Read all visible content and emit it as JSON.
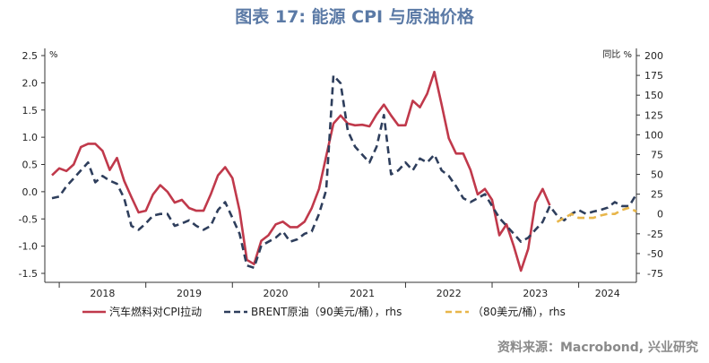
{
  "title": "图表 17: 能源 CPI 与原油价格",
  "source": "资料来源：Macrobond, 兴业研究",
  "chart_data": {
    "type": "line",
    "left_unit": "%",
    "right_unit": "同比 %",
    "ylim_left": [
      -1.5,
      2.5
    ],
    "ylim_right": [
      -75,
      200
    ],
    "left_ticks": [
      "2.5",
      "2.0",
      "1.5",
      "1.0",
      "0.5",
      "0.0",
      "-0.5",
      "-1.0",
      "-1.5"
    ],
    "left_tick_values": [
      2.5,
      2.0,
      1.5,
      1.0,
      0.5,
      0.0,
      -0.5,
      -1.0,
      -1.5
    ],
    "right_ticks": [
      "200",
      "175",
      "150",
      "125",
      "100",
      "75",
      "50",
      "25",
      "0",
      "-25",
      "-50",
      "-75"
    ],
    "right_tick_values": [
      200,
      175,
      150,
      125,
      100,
      75,
      50,
      25,
      0,
      -25,
      -50,
      -75
    ],
    "x_range": [
      "2017-11",
      "2024-09"
    ],
    "year_labels": [
      "2018",
      "2019",
      "2020",
      "2021",
      "2022",
      "2023",
      "2024"
    ],
    "legend_position": "bottom",
    "series": [
      {
        "name": "汽车燃料对CPI拉动",
        "axis": "left",
        "color": "#c0394b",
        "style": "solid",
        "x": [
          "2017-12",
          "2018-01",
          "2018-02",
          "2018-03",
          "2018-04",
          "2018-05",
          "2018-06",
          "2018-07",
          "2018-08",
          "2018-09",
          "2018-10",
          "2018-11",
          "2018-12",
          "2019-01",
          "2019-02",
          "2019-03",
          "2019-04",
          "2019-05",
          "2019-06",
          "2019-07",
          "2019-08",
          "2019-09",
          "2019-10",
          "2019-11",
          "2019-12",
          "2020-01",
          "2020-02",
          "2020-03",
          "2020-04",
          "2020-05",
          "2020-06",
          "2020-07",
          "2020-08",
          "2020-09",
          "2020-10",
          "2020-11",
          "2020-12",
          "2021-01",
          "2021-02",
          "2021-03",
          "2021-04",
          "2021-05",
          "2021-06",
          "2021-07",
          "2021-08",
          "2021-09",
          "2021-10",
          "2021-11",
          "2021-12",
          "2022-01",
          "2022-02",
          "2022-03",
          "2022-04",
          "2022-05",
          "2022-06",
          "2022-07",
          "2022-08",
          "2022-09",
          "2022-10",
          "2022-11",
          "2022-12",
          "2023-01",
          "2023-02",
          "2023-03",
          "2023-04",
          "2023-05",
          "2023-06",
          "2023-07",
          "2023-08",
          "2023-09"
        ],
        "values": [
          0.3,
          0.43,
          0.38,
          0.5,
          0.82,
          0.88,
          0.88,
          0.75,
          0.4,
          0.62,
          0.2,
          -0.1,
          -0.38,
          -0.35,
          -0.05,
          0.12,
          0.0,
          -0.2,
          -0.15,
          -0.3,
          -0.35,
          -0.35,
          -0.05,
          0.3,
          0.45,
          0.25,
          -0.35,
          -1.25,
          -1.33,
          -0.9,
          -0.8,
          -0.6,
          -0.55,
          -0.65,
          -0.65,
          -0.55,
          -0.3,
          0.05,
          0.65,
          1.25,
          1.4,
          1.25,
          1.22,
          1.23,
          1.2,
          1.42,
          1.6,
          1.4,
          1.22,
          1.22,
          1.67,
          1.55,
          1.8,
          2.2,
          1.6,
          0.98,
          0.7,
          0.7,
          0.4,
          -0.05,
          0.05,
          -0.15,
          -0.8,
          -0.6,
          -1.0,
          -1.45,
          -1.05,
          -0.2,
          0.05,
          -0.25
        ]
      },
      {
        "name": "BRENT原油（90美元/桶），rhs",
        "axis": "right",
        "color": "#2e3e5c",
        "style": "dashed",
        "x": [
          "2017-12",
          "2018-01",
          "2018-02",
          "2018-03",
          "2018-04",
          "2018-05",
          "2018-06",
          "2018-07",
          "2018-08",
          "2018-09",
          "2018-10",
          "2018-11",
          "2018-12",
          "2019-01",
          "2019-02",
          "2019-03",
          "2019-04",
          "2019-05",
          "2019-06",
          "2019-07",
          "2019-08",
          "2019-09",
          "2019-10",
          "2019-11",
          "2019-12",
          "2020-01",
          "2020-02",
          "2020-03",
          "2020-04",
          "2020-05",
          "2020-06",
          "2020-07",
          "2020-08",
          "2020-09",
          "2020-10",
          "2020-11",
          "2020-12",
          "2021-01",
          "2021-02",
          "2021-03",
          "2021-04",
          "2021-05",
          "2021-06",
          "2021-07",
          "2021-08",
          "2021-09",
          "2021-10",
          "2021-11",
          "2021-12",
          "2022-01",
          "2022-02",
          "2022-03",
          "2022-04",
          "2022-05",
          "2022-06",
          "2022-07",
          "2022-08",
          "2022-09",
          "2022-10",
          "2022-11",
          "2022-12",
          "2023-01",
          "2023-02",
          "2023-03",
          "2023-04",
          "2023-05",
          "2023-06",
          "2023-07",
          "2023-08",
          "2023-09",
          "2023-10",
          "2023-11",
          "2023-12",
          "2024-01",
          "2024-02",
          "2024-03",
          "2024-04",
          "2024-05",
          "2024-06",
          "2024-07",
          "2024-08",
          "2024-09"
        ],
        "values": [
          20,
          22,
          35,
          45,
          55,
          65,
          40,
          48,
          42,
          38,
          20,
          -15,
          -20,
          -12,
          -2,
          0,
          0,
          -15,
          -12,
          -8,
          -15,
          -20,
          -15,
          5,
          15,
          -5,
          -25,
          -65,
          -68,
          -40,
          -35,
          -30,
          -22,
          -35,
          -32,
          -25,
          -22,
          0,
          30,
          175,
          165,
          105,
          85,
          75,
          65,
          85,
          125,
          50,
          55,
          65,
          55,
          70,
          65,
          75,
          55,
          48,
          35,
          20,
          15,
          20,
          25,
          10,
          -5,
          -15,
          -25,
          -35,
          -30,
          -20,
          -10,
          10,
          -2,
          -8,
          0,
          5,
          0,
          3,
          5,
          8,
          15,
          10,
          10,
          25
        ]
      },
      {
        "name": "（80美元/桶），rhs",
        "axis": "right",
        "color": "#e8b64a",
        "style": "dashed",
        "x": [
          "2023-10",
          "2023-11",
          "2023-12",
          "2024-01",
          "2024-02",
          "2024-03",
          "2024-04",
          "2024-05",
          "2024-06",
          "2024-07",
          "2024-08",
          "2024-09"
        ],
        "values": [
          -10,
          -5,
          0,
          -5,
          -5,
          -5,
          -2,
          0,
          0,
          5,
          8,
          3
        ]
      }
    ]
  }
}
